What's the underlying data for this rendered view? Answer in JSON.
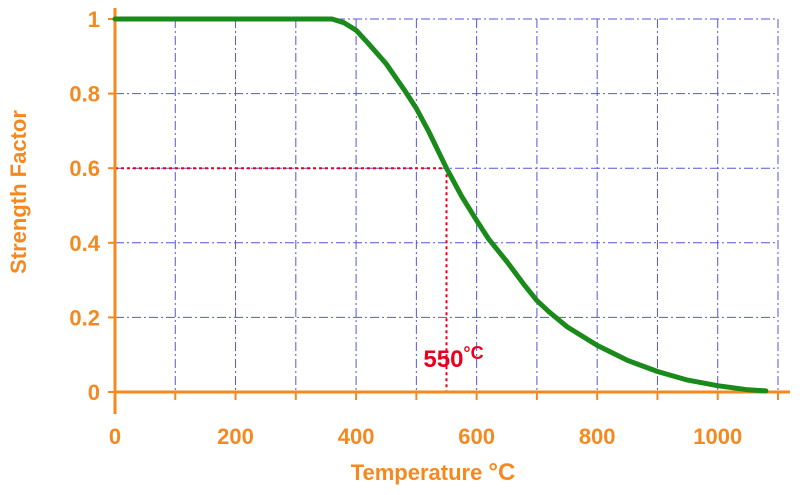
{
  "chart_data": {
    "type": "line",
    "xlabel": "Temperature",
    "xlabel_unit": "°C",
    "ylabel": "Strength Factor",
    "xlim": [
      0,
      1100
    ],
    "ylim": [
      0,
      1
    ],
    "x_ticks": [
      0,
      200,
      400,
      600,
      800,
      1000
    ],
    "x_tick_labels": [
      "0",
      "200",
      "400",
      "600",
      "800",
      "1000"
    ],
    "y_ticks": [
      0,
      0.2,
      0.4,
      0.6,
      0.8,
      1
    ],
    "y_tick_labels": [
      "0",
      "0.2",
      "0.4",
      "0.6",
      "0.8",
      "1"
    ],
    "x_grid_step": 100,
    "y_grid_step": 0.2,
    "grid": true,
    "series": [
      {
        "color": "#1a8a1a",
        "points": [
          [
            0,
            1
          ],
          [
            100,
            1
          ],
          [
            200,
            1
          ],
          [
            300,
            1
          ],
          [
            360,
            1
          ],
          [
            380,
            0.99
          ],
          [
            400,
            0.97
          ],
          [
            420,
            0.935
          ],
          [
            450,
            0.88
          ],
          [
            480,
            0.81
          ],
          [
            500,
            0.76
          ],
          [
            520,
            0.7
          ],
          [
            550,
            0.6
          ],
          [
            575,
            0.525
          ],
          [
            600,
            0.46
          ],
          [
            620,
            0.41
          ],
          [
            650,
            0.35
          ],
          [
            680,
            0.285
          ],
          [
            700,
            0.245
          ],
          [
            720,
            0.215
          ],
          [
            750,
            0.175
          ],
          [
            800,
            0.125
          ],
          [
            850,
            0.085
          ],
          [
            900,
            0.055
          ],
          [
            950,
            0.032
          ],
          [
            1000,
            0.017
          ],
          [
            1050,
            0.006
          ],
          [
            1080,
            0.003
          ]
        ]
      }
    ],
    "annotation": {
      "text": "550",
      "unit": "°C",
      "x": 550,
      "y": 0.6,
      "color": "#e8001c"
    },
    "colors": {
      "axis": "#f5891f",
      "grid": "#5555dd",
      "curve": "#1a8a1a",
      "marker": "#e8001c"
    }
  }
}
